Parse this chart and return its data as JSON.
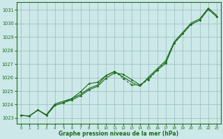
{
  "x": [
    0,
    1,
    2,
    3,
    4,
    5,
    6,
    7,
    8,
    9,
    10,
    11,
    12,
    13,
    14,
    15,
    16,
    17,
    18,
    19,
    20,
    21,
    22,
    23
  ],
  "line1": [
    1023.2,
    1023.15,
    1023.6,
    1023.2,
    1023.95,
    1024.15,
    1024.35,
    1024.65,
    1025.1,
    1025.35,
    1025.95,
    1026.35,
    1026.25,
    1025.85,
    1025.45,
    1025.95,
    1026.55,
    1027.05,
    1028.55,
    1029.25,
    1029.95,
    1030.25,
    1031.05,
    1030.5
  ],
  "line2": [
    1023.2,
    1023.15,
    1023.6,
    1023.25,
    1024.05,
    1024.25,
    1024.45,
    1024.75,
    1025.2,
    1025.45,
    1026.15,
    1026.45,
    1026.05,
    1025.65,
    1025.35,
    1026.05,
    1026.65,
    1027.25,
    1028.65,
    1029.35,
    1030.05,
    1030.35,
    1031.15,
    1030.6
  ],
  "line3_solid_x": [
    0,
    1,
    2,
    3,
    4,
    5,
    6,
    7,
    8,
    9,
    10,
    11
  ],
  "line3_solid": [
    1023.2,
    1023.15,
    1023.6,
    1023.2,
    1023.95,
    1024.15,
    1024.45,
    1024.95,
    1025.55,
    1025.65,
    1026.15,
    1026.45
  ],
  "line3_dashed_x": [
    11,
    12,
    13,
    14,
    15,
    16,
    17,
    18,
    19,
    20,
    21,
    22,
    23
  ],
  "line3_dashed": [
    1026.45,
    1025.95,
    1025.45,
    1025.45,
    1025.85,
    1026.55,
    1027.15,
    1028.55,
    1029.25,
    1029.95,
    1030.25,
    1031.05,
    1030.5
  ],
  "ylim_min": 1022.6,
  "ylim_max": 1031.6,
  "xlim_min": -0.5,
  "xlim_max": 23.5,
  "yticks": [
    1023,
    1024,
    1025,
    1026,
    1027,
    1028,
    1029,
    1030,
    1031
  ],
  "xticks": [
    0,
    1,
    2,
    3,
    4,
    5,
    6,
    7,
    8,
    9,
    10,
    11,
    12,
    13,
    14,
    15,
    16,
    17,
    18,
    19,
    20,
    21,
    22,
    23
  ],
  "xlabel": "Graphe pression niveau de la mer (hPa)",
  "line_color": "#1a6b1a",
  "bg_color": "#cce8e8",
  "grid_color": "#99bbbb",
  "text_color": "#1a6b1a"
}
